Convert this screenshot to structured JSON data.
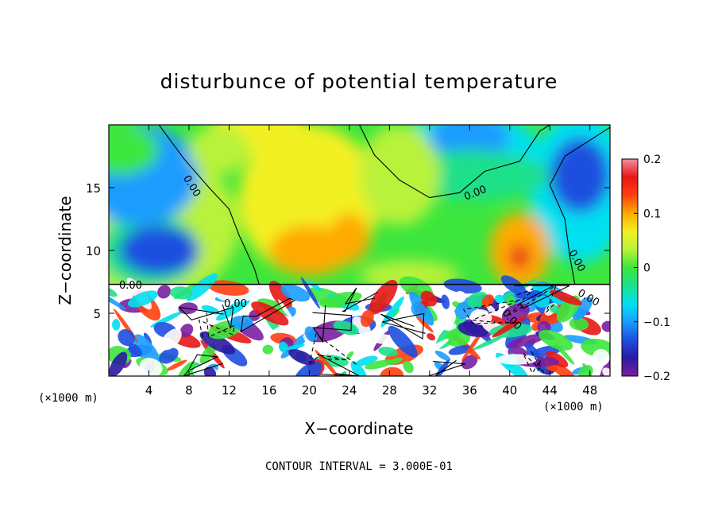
{
  "chart_data": {
    "type": "heatmap",
    "title": "disturbunce of potential temperature",
    "xlabel": "X−coordinate",
    "ylabel": "Z−coordinate",
    "x_unit_label": "(×1000 m)",
    "y_unit_label": "(×1000 m)",
    "xlim": [
      0,
      50
    ],
    "ylim": [
      0,
      20
    ],
    "x_ticks": [
      4,
      8,
      12,
      16,
      20,
      24,
      28,
      32,
      36,
      40,
      44,
      48
    ],
    "y_ticks": [
      5,
      10,
      15
    ],
    "colorbar": {
      "range": [
        -0.2,
        0.2
      ],
      "ticks": [
        0.2,
        0.1,
        0,
        -0.1,
        -0.2
      ],
      "tick_labels": [
        "0.2",
        "0.1",
        "0",
        "−0.1",
        "−0.2"
      ],
      "colormap": [
        "#7a1fa2",
        "#2a1aa0",
        "#1d4fe0",
        "#1a9cff",
        "#00e0f0",
        "#1ee08a",
        "#3ce63c",
        "#b9f23a",
        "#f3f020",
        "#ffaa00",
        "#ff4010",
        "#e81616",
        "#f58ca0"
      ]
    },
    "contour_label": "0.00",
    "contour_interval_text": "CONTOUR INTERVAL = 3.000E-01"
  },
  "colors": {
    "background": "#ffffff",
    "boundary_layer": "#ffffff",
    "contour": "#000000"
  }
}
